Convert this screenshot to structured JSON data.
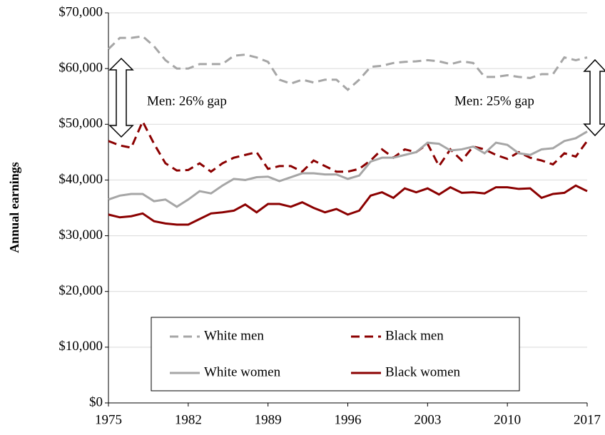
{
  "chart_data": {
    "type": "line",
    "y_label": "Annual earnings",
    "annotations": [
      "Men: 26% gap",
      "Men: 25% gap"
    ],
    "x": [
      1975,
      1976,
      1977,
      1978,
      1979,
      1980,
      1981,
      1982,
      1983,
      1984,
      1985,
      1986,
      1987,
      1988,
      1989,
      1990,
      1991,
      1992,
      1993,
      1994,
      1995,
      1996,
      1997,
      1998,
      1999,
      2000,
      2001,
      2002,
      2003,
      2004,
      2005,
      2006,
      2007,
      2008,
      2009,
      2010,
      2011,
      2012,
      2013,
      2014,
      2015,
      2016,
      2017
    ],
    "xlim": [
      1975,
      2017
    ],
    "xticks": [
      1975,
      1982,
      1989,
      1996,
      2003,
      2010,
      2017
    ],
    "ylim": [
      0,
      70000
    ],
    "yticks": [
      {
        "value": 0,
        "label": "$0"
      },
      {
        "value": 10000,
        "label": "$10,000"
      },
      {
        "value": 20000,
        "label": "$20,000"
      },
      {
        "value": 30000,
        "label": "$30,000"
      },
      {
        "value": 40000,
        "label": "$40,000"
      },
      {
        "value": 50000,
        "label": "$50,000"
      },
      {
        "value": 60000,
        "label": "$60,000"
      },
      {
        "value": 70000,
        "label": "$70,000"
      }
    ],
    "grid": true,
    "series": [
      {
        "name": "White men",
        "color": "#a6a6a6",
        "dash": true,
        "values": [
          63500,
          65500,
          65500,
          65800,
          64000,
          61500,
          60000,
          60000,
          60800,
          60800,
          60800,
          62300,
          62500,
          62000,
          61200,
          58000,
          57300,
          58000,
          57500,
          58000,
          58000,
          56200,
          58000,
          60300,
          60500,
          61000,
          61200,
          61300,
          61500,
          61300,
          60800,
          61300,
          61000,
          58500,
          58500,
          58800,
          58500,
          58300,
          59000,
          59000,
          62000,
          61500,
          62000
        ]
      },
      {
        "name": "Black men",
        "color": "#8b0000",
        "dash": true,
        "values": [
          47000,
          46200,
          45800,
          50500,
          46500,
          43000,
          41700,
          41800,
          43000,
          41500,
          43000,
          44000,
          44500,
          45000,
          42000,
          42500,
          42500,
          41500,
          43500,
          42500,
          41500,
          41500,
          42000,
          43500,
          45500,
          44000,
          45500,
          45000,
          46500,
          42500,
          45500,
          43500,
          46000,
          45500,
          44500,
          43800,
          45000,
          44000,
          43500,
          42800,
          44800,
          44200,
          47000
        ]
      },
      {
        "name": "White women",
        "color": "#a6a6a6",
        "dash": false,
        "values": [
          36500,
          37200,
          37500,
          37500,
          36200,
          36500,
          35200,
          36500,
          38000,
          37600,
          39000,
          40200,
          40000,
          40500,
          40600,
          39800,
          40500,
          41200,
          41200,
          41000,
          41000,
          40200,
          40800,
          43300,
          44000,
          44000,
          44500,
          45000,
          46700,
          46500,
          45300,
          45500,
          46000,
          44800,
          46700,
          46300,
          44800,
          44500,
          45500,
          45700,
          47000,
          47500,
          48700
        ]
      },
      {
        "name": "Black women",
        "color": "#8b0000",
        "dash": false,
        "values": [
          33800,
          33300,
          33500,
          34000,
          32600,
          32200,
          32000,
          32000,
          33000,
          34000,
          34200,
          34500,
          35600,
          34200,
          35700,
          35700,
          35200,
          36000,
          35000,
          34200,
          34800,
          33800,
          34500,
          37200,
          37800,
          36800,
          38500,
          37800,
          38500,
          37400,
          38700,
          37700,
          37800,
          37600,
          38700,
          38700,
          38400,
          38500,
          36800,
          37500,
          37700,
          39000,
          38000
        ]
      }
    ]
  }
}
